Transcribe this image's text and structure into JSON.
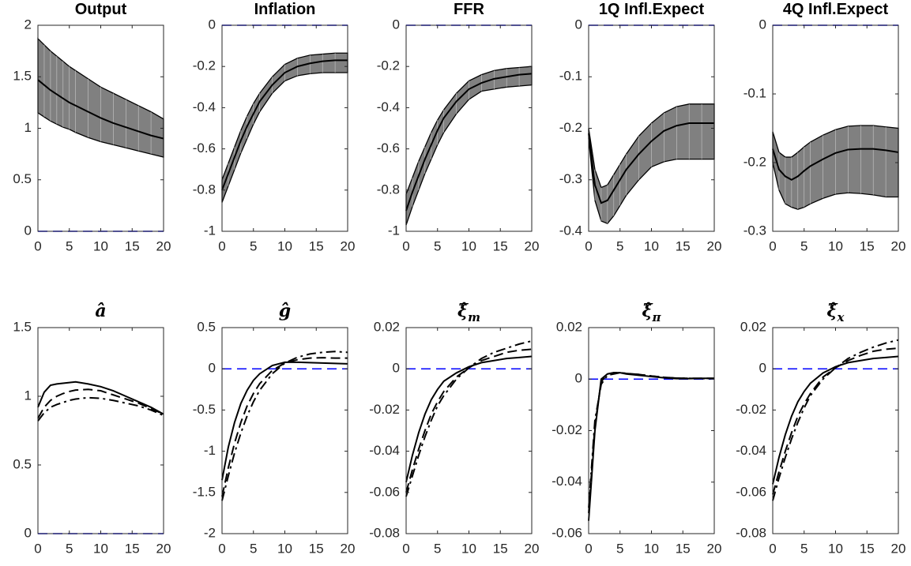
{
  "chart_data": [
    {
      "type": "band",
      "title": "Output",
      "x": [
        0,
        1,
        2,
        3,
        4,
        5,
        6,
        8,
        10,
        12,
        14,
        16,
        18,
        20
      ],
      "xlim": [
        0,
        20
      ],
      "xticks": [
        0,
        5,
        10,
        15,
        20
      ],
      "ylim": [
        0,
        2
      ],
      "yticks": [
        0,
        0.5,
        1,
        1.5,
        2
      ],
      "hline": 0,
      "hline_color": "#0000ff",
      "band": {
        "color": "#808080",
        "upper": [
          1.87,
          1.81,
          1.75,
          1.7,
          1.65,
          1.6,
          1.56,
          1.48,
          1.4,
          1.34,
          1.28,
          1.22,
          1.16,
          1.09
        ],
        "lower": [
          1.15,
          1.11,
          1.07,
          1.04,
          1.01,
          0.99,
          0.96,
          0.91,
          0.87,
          0.84,
          0.81,
          0.78,
          0.75,
          0.72
        ]
      },
      "series": [
        {
          "color": "#000000",
          "dash": "solid",
          "values": [
            1.47,
            1.42,
            1.37,
            1.33,
            1.29,
            1.25,
            1.22,
            1.16,
            1.1,
            1.05,
            1.01,
            0.97,
            0.93,
            0.9
          ]
        }
      ]
    },
    {
      "type": "band",
      "title": "Inflation",
      "x": [
        0,
        1,
        2,
        3,
        4,
        5,
        6,
        8,
        10,
        12,
        14,
        16,
        18,
        20
      ],
      "xlim": [
        0,
        20
      ],
      "xticks": [
        0,
        5,
        10,
        15,
        20
      ],
      "ylim": [
        -1,
        0
      ],
      "yticks": [
        -1,
        -0.8,
        -0.6,
        -0.4,
        -0.2,
        0
      ],
      "hline": 0,
      "hline_color": "#0000ff",
      "band": {
        "color": "#808080",
        "upper": [
          -0.75,
          -0.67,
          -0.59,
          -0.51,
          -0.44,
          -0.38,
          -0.33,
          -0.25,
          -0.19,
          -0.16,
          -0.145,
          -0.14,
          -0.135,
          -0.135
        ],
        "lower": [
          -0.86,
          -0.78,
          -0.7,
          -0.62,
          -0.55,
          -0.48,
          -0.42,
          -0.33,
          -0.27,
          -0.245,
          -0.235,
          -0.23,
          -0.23,
          -0.23
        ]
      },
      "series": [
        {
          "color": "#000000",
          "dash": "solid",
          "values": [
            -0.8,
            -0.72,
            -0.64,
            -0.56,
            -0.49,
            -0.43,
            -0.37,
            -0.29,
            -0.23,
            -0.2,
            -0.185,
            -0.175,
            -0.17,
            -0.17
          ]
        }
      ]
    },
    {
      "type": "band",
      "title": "FFR",
      "x": [
        0,
        1,
        2,
        3,
        4,
        5,
        6,
        8,
        10,
        12,
        14,
        16,
        18,
        20
      ],
      "xlim": [
        0,
        20
      ],
      "xticks": [
        0,
        5,
        10,
        15,
        20
      ],
      "ylim": [
        -1,
        0
      ],
      "yticks": [
        -1,
        -0.8,
        -0.6,
        -0.4,
        -0.2,
        0
      ],
      "hline": 0,
      "hline_color": "#0000ff",
      "band": {
        "color": "#808080",
        "upper": [
          -0.82,
          -0.74,
          -0.66,
          -0.59,
          -0.52,
          -0.46,
          -0.41,
          -0.33,
          -0.27,
          -0.24,
          -0.22,
          -0.21,
          -0.205,
          -0.2
        ],
        "lower": [
          -0.97,
          -0.88,
          -0.8,
          -0.72,
          -0.65,
          -0.58,
          -0.52,
          -0.43,
          -0.36,
          -0.32,
          -0.31,
          -0.3,
          -0.295,
          -0.29
        ]
      },
      "series": [
        {
          "color": "#000000",
          "dash": "solid",
          "values": [
            -0.9,
            -0.81,
            -0.73,
            -0.65,
            -0.58,
            -0.51,
            -0.45,
            -0.37,
            -0.31,
            -0.28,
            -0.26,
            -0.25,
            -0.24,
            -0.235
          ]
        }
      ]
    },
    {
      "type": "band",
      "title": "1Q Infl.Expect",
      "x": [
        0,
        1,
        2,
        3,
        4,
        5,
        6,
        8,
        10,
        12,
        14,
        16,
        18,
        20
      ],
      "xlim": [
        0,
        20
      ],
      "xticks": [
        0,
        5,
        10,
        15,
        20
      ],
      "ylim": [
        -0.4,
        0
      ],
      "yticks": [
        -0.4,
        -0.3,
        -0.2,
        -0.1,
        0
      ],
      "hline": 0,
      "hline_color": "#0000ff",
      "band": {
        "color": "#808080",
        "upper": [
          -0.2,
          -0.28,
          -0.315,
          -0.31,
          -0.29,
          -0.27,
          -0.25,
          -0.215,
          -0.19,
          -0.17,
          -0.158,
          -0.153,
          -0.153,
          -0.153
        ],
        "lower": [
          -0.22,
          -0.34,
          -0.38,
          -0.385,
          -0.37,
          -0.35,
          -0.33,
          -0.3,
          -0.275,
          -0.265,
          -0.26,
          -0.26,
          -0.26,
          -0.26
        ]
      },
      "series": [
        {
          "color": "#000000",
          "dash": "solid",
          "values": [
            -0.21,
            -0.31,
            -0.345,
            -0.34,
            -0.32,
            -0.3,
            -0.28,
            -0.25,
            -0.225,
            -0.205,
            -0.195,
            -0.19,
            -0.19,
            -0.19
          ]
        }
      ]
    },
    {
      "type": "band",
      "title": "4Q Infl.Expect",
      "x": [
        0,
        1,
        2,
        3,
        4,
        5,
        6,
        8,
        10,
        12,
        14,
        16,
        18,
        20
      ],
      "xlim": [
        0,
        20
      ],
      "xticks": [
        0,
        5,
        10,
        15,
        20
      ],
      "ylim": [
        -0.3,
        0
      ],
      "yticks": [
        -0.3,
        -0.2,
        -0.1,
        0
      ],
      "hline": 0,
      "hline_color": "#0000ff",
      "band": {
        "color": "#808080",
        "upper": [
          -0.155,
          -0.185,
          -0.192,
          -0.192,
          -0.185,
          -0.177,
          -0.17,
          -0.16,
          -0.152,
          -0.147,
          -0.146,
          -0.146,
          -0.148,
          -0.15
        ],
        "lower": [
          -0.2,
          -0.24,
          -0.26,
          -0.265,
          -0.268,
          -0.265,
          -0.26,
          -0.252,
          -0.246,
          -0.244,
          -0.245,
          -0.247,
          -0.25,
          -0.25
        ]
      },
      "series": [
        {
          "color": "#000000",
          "dash": "solid",
          "values": [
            -0.18,
            -0.21,
            -0.22,
            -0.225,
            -0.22,
            -0.212,
            -0.205,
            -0.195,
            -0.186,
            -0.181,
            -0.18,
            -0.18,
            -0.182,
            -0.185
          ]
        }
      ]
    },
    {
      "type": "line",
      "title": "â",
      "x": [
        0,
        1,
        2,
        3,
        4,
        5,
        6,
        8,
        10,
        12,
        14,
        16,
        18,
        20
      ],
      "xlim": [
        0,
        20
      ],
      "xticks": [
        0,
        5,
        10,
        15,
        20
      ],
      "ylim": [
        0,
        1.5
      ],
      "yticks": [
        0,
        0.5,
        1,
        1.5
      ],
      "hline": 0,
      "hline_color": "#0000ff",
      "series": [
        {
          "color": "#000000",
          "dash": "solid",
          "values": [
            0.92,
            1.03,
            1.08,
            1.09,
            1.095,
            1.1,
            1.105,
            1.09,
            1.07,
            1.04,
            1.0,
            0.96,
            0.92,
            0.87
          ]
        },
        {
          "color": "#000000",
          "dash": "dashed",
          "values": [
            0.84,
            0.92,
            0.97,
            1.0,
            1.02,
            1.035,
            1.045,
            1.05,
            1.04,
            1.01,
            0.98,
            0.95,
            0.91,
            0.87
          ]
        },
        {
          "color": "#000000",
          "dash": "dashdot",
          "values": [
            0.82,
            0.88,
            0.92,
            0.94,
            0.955,
            0.97,
            0.98,
            0.99,
            0.985,
            0.97,
            0.95,
            0.93,
            0.9,
            0.86
          ]
        }
      ]
    },
    {
      "type": "line",
      "title": "ĝ",
      "x": [
        0,
        1,
        2,
        3,
        4,
        5,
        6,
        8,
        10,
        12,
        14,
        16,
        18,
        20
      ],
      "xlim": [
        0,
        20
      ],
      "xticks": [
        0,
        5,
        10,
        15,
        20
      ],
      "ylim": [
        -2,
        0.5
      ],
      "yticks": [
        -2,
        -1.5,
        -1,
        -0.5,
        0,
        0.5
      ],
      "hline": 0,
      "hline_color": "#0000ff",
      "series": [
        {
          "color": "#000000",
          "dash": "solid",
          "values": [
            -1.35,
            -0.95,
            -0.65,
            -0.42,
            -0.26,
            -0.14,
            -0.06,
            0.04,
            0.08,
            0.08,
            0.075,
            0.07,
            0.065,
            0.06
          ]
        },
        {
          "color": "#000000",
          "dash": "dashed",
          "values": [
            -1.55,
            -1.2,
            -0.9,
            -0.65,
            -0.45,
            -0.3,
            -0.18,
            -0.02,
            0.07,
            0.11,
            0.13,
            0.135,
            0.13,
            0.13
          ]
        },
        {
          "color": "#000000",
          "dash": "dashdot",
          "values": [
            -1.6,
            -1.3,
            -1.02,
            -0.78,
            -0.57,
            -0.4,
            -0.26,
            -0.06,
            0.07,
            0.14,
            0.18,
            0.2,
            0.21,
            0.2
          ]
        }
      ]
    },
    {
      "type": "line",
      "title": "ξ̂",
      "title_subscript": "m",
      "x": [
        0,
        1,
        2,
        3,
        4,
        5,
        6,
        8,
        10,
        12,
        14,
        16,
        18,
        20
      ],
      "xlim": [
        0,
        20
      ],
      "xticks": [
        0,
        5,
        10,
        15,
        20
      ],
      "ylim": [
        -0.08,
        0.02
      ],
      "yticks": [
        -0.08,
        -0.06,
        -0.04,
        -0.02,
        0,
        0.02
      ],
      "hline": 0,
      "hline_color": "#0000ff",
      "series": [
        {
          "color": "#000000",
          "dash": "solid",
          "values": [
            -0.055,
            -0.042,
            -0.031,
            -0.022,
            -0.015,
            -0.01,
            -0.006,
            -0.002,
            0.001,
            0.003,
            0.004,
            0.005,
            0.0055,
            0.006
          ]
        },
        {
          "color": "#000000",
          "dash": "dashed",
          "values": [
            -0.06,
            -0.049,
            -0.039,
            -0.03,
            -0.022,
            -0.016,
            -0.011,
            -0.004,
            0.0005,
            0.004,
            0.006,
            0.008,
            0.009,
            0.0095
          ]
        },
        {
          "color": "#000000",
          "dash": "dashdot",
          "values": [
            -0.062,
            -0.052,
            -0.042,
            -0.033,
            -0.025,
            -0.018,
            -0.013,
            -0.005,
            0.0005,
            0.005,
            0.008,
            0.01,
            0.012,
            0.0135
          ]
        }
      ]
    },
    {
      "type": "line",
      "title": "ξ̂",
      "title_subscript": "π",
      "x": [
        0,
        1,
        2,
        3,
        4,
        5,
        6,
        8,
        10,
        12,
        14,
        16,
        18,
        20
      ],
      "xlim": [
        0,
        20
      ],
      "xticks": [
        0,
        5,
        10,
        15,
        20
      ],
      "ylim": [
        -0.06,
        0.02
      ],
      "yticks": [
        -0.06,
        -0.04,
        -0.02,
        0,
        0.02
      ],
      "hline": 0,
      "hline_color": "#0000ff",
      "series": [
        {
          "color": "#000000",
          "dash": "solid",
          "values": [
            -0.055,
            -0.02,
            0.0,
            0.002,
            0.0025,
            0.0025,
            0.002,
            0.0015,
            0.001,
            0.0005,
            0.0002,
            0.0002,
            0.0003,
            0.0003
          ]
        },
        {
          "color": "#000000",
          "dash": "dashed",
          "values": [
            -0.052,
            -0.018,
            -0.001,
            0.002,
            0.0025,
            0.0025,
            0.0022,
            0.0018,
            0.0012,
            0.0007,
            0.0004,
            0.0003,
            0.0003,
            0.0003
          ]
        },
        {
          "color": "#000000",
          "dash": "dashdot",
          "values": [
            -0.05,
            -0.016,
            -0.002,
            0.0015,
            0.002,
            0.0025,
            0.0022,
            0.0018,
            0.0012,
            0.0007,
            0.0004,
            0.0003,
            0.0002,
            0.0002
          ]
        }
      ]
    },
    {
      "type": "line",
      "title": "ξ̂",
      "title_subscript": "x",
      "x": [
        0,
        1,
        2,
        3,
        4,
        5,
        6,
        8,
        10,
        12,
        14,
        16,
        18,
        20
      ],
      "xlim": [
        0,
        20
      ],
      "xticks": [
        0,
        5,
        10,
        15,
        20
      ],
      "ylim": [
        -0.08,
        0.02
      ],
      "yticks": [
        -0.08,
        -0.06,
        -0.04,
        -0.02,
        0,
        0.02
      ],
      "hline": 0,
      "hline_color": "#0000ff",
      "series": [
        {
          "color": "#000000",
          "dash": "solid",
          "values": [
            -0.056,
            -0.043,
            -0.032,
            -0.023,
            -0.016,
            -0.011,
            -0.007,
            -0.002,
            0.001,
            0.003,
            0.004,
            0.005,
            0.0055,
            0.006
          ]
        },
        {
          "color": "#000000",
          "dash": "dashed",
          "values": [
            -0.061,
            -0.05,
            -0.04,
            -0.031,
            -0.023,
            -0.017,
            -0.012,
            -0.004,
            0.0005,
            0.004,
            0.0065,
            0.0085,
            0.0095,
            0.01
          ]
        },
        {
          "color": "#000000",
          "dash": "dashdot",
          "values": [
            -0.064,
            -0.053,
            -0.043,
            -0.034,
            -0.026,
            -0.019,
            -0.013,
            -0.005,
            0.0005,
            0.005,
            0.008,
            0.0105,
            0.0125,
            0.014
          ]
        }
      ]
    }
  ]
}
